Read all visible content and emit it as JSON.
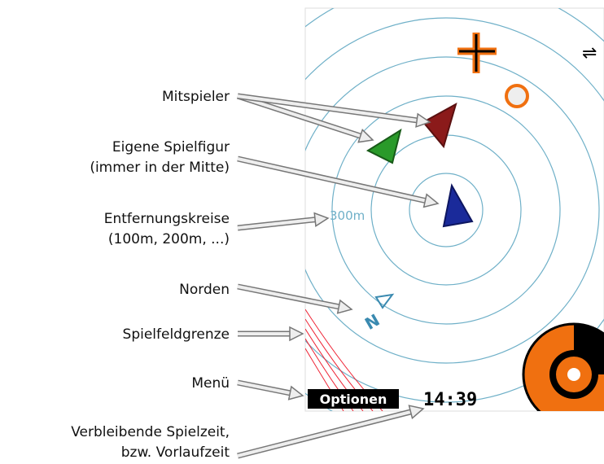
{
  "annotations": [
    {
      "lines": [
        "Mitspieler"
      ]
    },
    {
      "lines": [
        "Eigene Spielfigur",
        "(immer in der Mitte)"
      ]
    },
    {
      "lines": [
        "Entfernungskreise",
        "(100m, 200m, ...)"
      ]
    },
    {
      "lines": [
        "Norden"
      ]
    },
    {
      "lines": [
        "Spielfeldgrenze"
      ]
    },
    {
      "lines": [
        "Menü"
      ]
    },
    {
      "lines": [
        "Verbleibende Spielzeit,",
        "bzw. Vorlaufzeit"
      ]
    }
  ],
  "screen": {
    "distance_label": "300m",
    "north_label": "N",
    "menu": "Optionen",
    "time": "14:39"
  }
}
